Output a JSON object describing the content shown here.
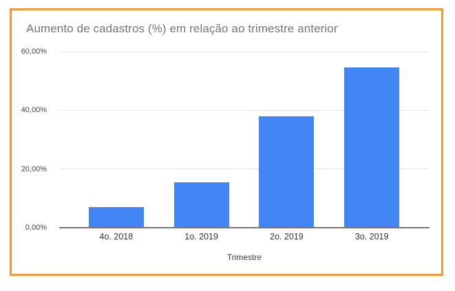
{
  "frame": {
    "border_color": "#EF9B3D",
    "background": "#FFFFFF"
  },
  "chart_data": {
    "type": "bar",
    "title": "Aumento de cadastros (%) em relação ao trimestre anterior",
    "categories": [
      "4o. 2018",
      "1o. 2019",
      "2o. 2019",
      "3o. 2019"
    ],
    "values": [
      7.1,
      15.4,
      37.9,
      54.5
    ],
    "xlabel": "Trimestre",
    "ylim": [
      0,
      60
    ],
    "yticks": [
      {
        "value": 0,
        "label": "0,00%"
      },
      {
        "value": 20,
        "label": "20,00%"
      },
      {
        "value": 40,
        "label": "40,00%"
      },
      {
        "value": 60,
        "label": "60,00%"
      }
    ],
    "grid": true,
    "legend": "none",
    "colors": {
      "bar": "#4285F4",
      "gridline": "#E3E3E3",
      "baseline": "#757575",
      "title_text": "#757575",
      "ytick_text": "#444444",
      "xtick_text": "#333333",
      "xlabel_text": "#3C3C3C"
    }
  }
}
